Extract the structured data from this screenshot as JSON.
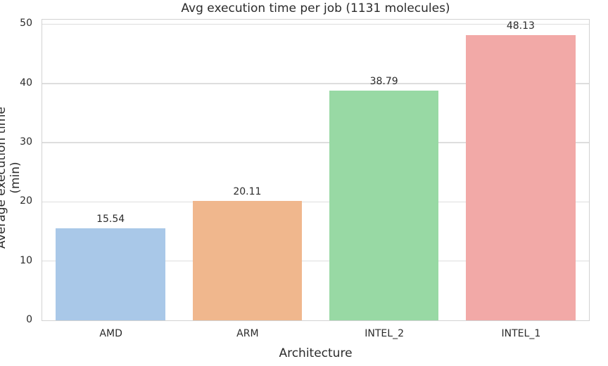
{
  "chart_data": {
    "type": "bar",
    "title": "Avg execution time per job (1131 molecules)",
    "xlabel": "Architecture",
    "ylabel": "Average execution time (min)",
    "categories": [
      "AMD",
      "ARM",
      "INTEL_2",
      "INTEL_1"
    ],
    "values": [
      15.54,
      20.11,
      38.79,
      48.13
    ],
    "value_labels": [
      "15.54",
      "20.11",
      "38.79",
      "48.13"
    ],
    "bar_colors": [
      "#a9c8e8",
      "#f0b78d",
      "#98d9a4",
      "#f2a9a7"
    ],
    "yticks": [
      0,
      10,
      20,
      30,
      40,
      50
    ],
    "ylim": [
      0,
      50
    ],
    "grid": "horizontal",
    "legend": "none"
  },
  "colors": {
    "background": "#ffffff",
    "text": "#2b2b2b",
    "gridline": "#dedede",
    "spine": "#d2d2d2"
  }
}
